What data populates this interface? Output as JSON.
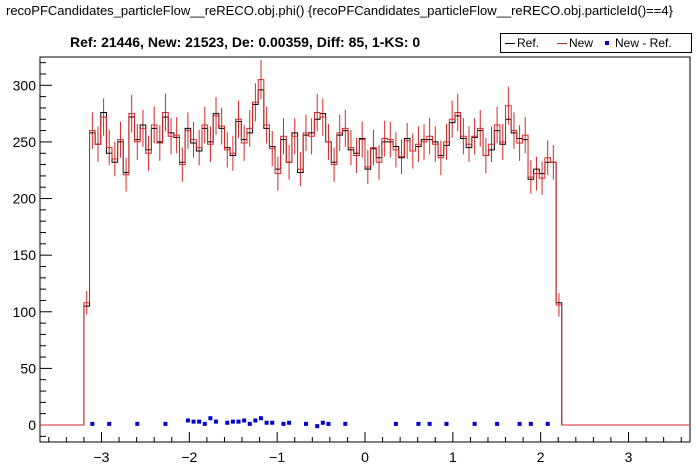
{
  "header": {
    "title": "recoPFCandidates_particleFlow__reRECO.obj.phi() {recoPFCandidates_particleFlow__reRECO.obj.particleId()==4}",
    "stats": "Ref: 21446, New: 21523, De: 0.00359, Diff: 85, 1-KS:     0"
  },
  "legend": [
    {
      "label": "Ref.",
      "color": "#000000",
      "style": "line"
    },
    {
      "label": "New",
      "color": "#d62728",
      "style": "line"
    },
    {
      "label": "New - Ref.",
      "color": "#0000cc",
      "style": "marker"
    }
  ],
  "chart_data": {
    "type": "histogram",
    "title": "recoPFCandidates_particleFlow__reRECO.obj.phi() {recoPFCandidates_particleFlow__reRECO.obj.particleId()==4}",
    "xlim": [
      -3.7,
      3.7
    ],
    "ylim": [
      -15,
      325
    ],
    "x_ticks": [
      -3,
      -2,
      -1,
      0,
      1,
      2,
      3
    ],
    "y_ticks": [
      0,
      50,
      100,
      150,
      200,
      250,
      300
    ],
    "grid": false,
    "legend_position": "top-right",
    "bin_edges_start": -3.2,
    "bin_width": 0.064,
    "series": [
      {
        "name": "Ref.",
        "color": "#000000",
        "values": [
          105,
          258,
          248,
          276,
          240,
          232,
          250,
          223,
          272,
          252,
          265,
          243,
          262,
          250,
          272,
          258,
          254,
          232,
          262,
          249,
          242,
          262,
          250,
          275,
          262,
          245,
          238,
          268,
          252,
          258,
          283,
          296,
          262,
          246,
          226,
          252,
          232,
          258,
          223,
          256,
          258,
          270,
          275,
          250,
          232,
          256,
          260,
          243,
          240,
          253,
          226,
          244,
          236,
          250,
          250,
          246,
          236,
          253,
          242,
          246,
          252,
          252,
          250,
          238,
          247,
          267,
          273,
          253,
          245,
          254,
          260,
          238,
          243,
          260,
          248,
          270,
          258,
          253,
          252,
          217,
          226,
          222,
          232,
          232,
          108
        ]
      },
      {
        "name": "New",
        "color": "#d62728",
        "values": [
          108,
          260,
          248,
          272,
          245,
          235,
          252,
          221,
          275,
          250,
          262,
          240,
          265,
          249,
          276,
          255,
          256,
          230,
          260,
          252,
          245,
          265,
          248,
          273,
          264,
          243,
          240,
          270,
          249,
          262,
          285,
          305,
          265,
          244,
          222,
          255,
          232,
          255,
          226,
          258,
          255,
          276,
          272,
          250,
          230,
          258,
          262,
          245,
          238,
          252,
          228,
          245,
          232,
          253,
          252,
          243,
          237,
          251,
          242,
          248,
          250,
          255,
          248,
          236,
          250,
          270,
          276,
          255,
          248,
          255,
          262,
          238,
          248,
          265,
          250,
          282,
          260,
          249,
          256,
          219,
          222,
          218,
          236,
          232,
          106
        ]
      },
      {
        "name": "New - Ref.",
        "color": "#0000cc",
        "values": [
          0,
          1,
          0,
          0,
          1,
          0,
          0,
          0,
          0,
          1,
          0,
          0,
          0,
          0,
          1,
          0,
          0,
          0,
          4,
          3,
          3,
          1,
          6,
          3,
          0,
          2,
          3,
          3,
          4,
          1,
          4,
          6,
          2,
          2,
          0,
          1,
          2,
          0,
          0,
          1,
          0,
          -1,
          2,
          1,
          0,
          0,
          1,
          0,
          0,
          0,
          0,
          0,
          0,
          0,
          0,
          1,
          0,
          0,
          0,
          1,
          0,
          1,
          0,
          0,
          1,
          0,
          0,
          0,
          0,
          1,
          0,
          0,
          0,
          1,
          0,
          0,
          0,
          1,
          0,
          1,
          0,
          0,
          1,
          0,
          0
        ]
      }
    ]
  }
}
